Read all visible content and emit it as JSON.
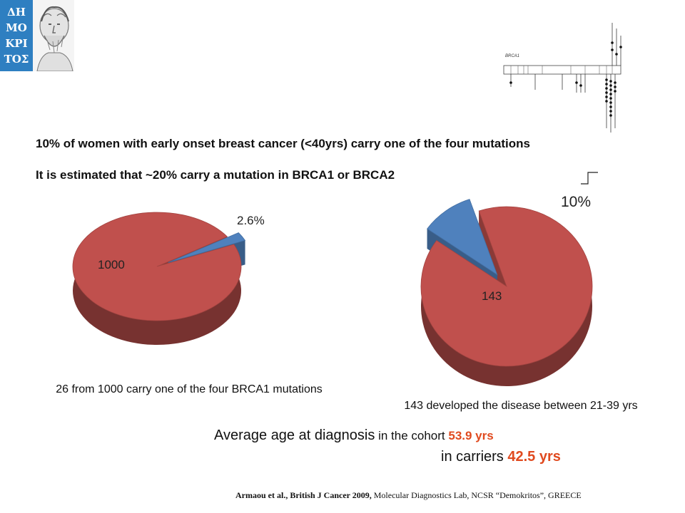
{
  "logo": {
    "text_lines": [
      "ΔΗ",
      "ΜΟ",
      "ΚΡΙ",
      "ΤΟΣ"
    ],
    "side_color": "#2e7fc1"
  },
  "diagram": {
    "gene_label": "BRCA1"
  },
  "headlines": {
    "line1": "10% of women with early onset breast cancer (<40yrs) carry one of the four mutations",
    "line2": "It is estimated that ~20% carry a mutation in BRCA1 or BRCA2"
  },
  "chart_data": [
    {
      "type": "pie",
      "slices": [
        {
          "label": "1000",
          "value": 97.4,
          "color": "#c0504d"
        },
        {
          "label": "2.6%",
          "value": 2.6,
          "color": "#4f81bd",
          "exploded": true
        }
      ],
      "caption": "26 from 1000 carry one of the four BRCA1 mutations"
    },
    {
      "type": "pie",
      "slices": [
        {
          "label": "143",
          "value": 90,
          "color": "#c0504d"
        },
        {
          "label": "10%",
          "value": 10,
          "color": "#4f81bd",
          "exploded": true
        }
      ],
      "caption": "143 developed the disease between 21-39 yrs"
    }
  ],
  "summary": {
    "line1_prefix": "Average age at diagnosis",
    "line1_middle": " in the cohort ",
    "line1_value": "53.9 yrs",
    "line2_prefix": "in carriers ",
    "line2_value": "42.5 yrs",
    "value_color": "#e04a1f"
  },
  "reference": {
    "authors": "Armaou et al., British J Cancer 2009,",
    "rest": " Molecular Diagnostics Lab, NCSR “Demokritos”, GREECE"
  }
}
